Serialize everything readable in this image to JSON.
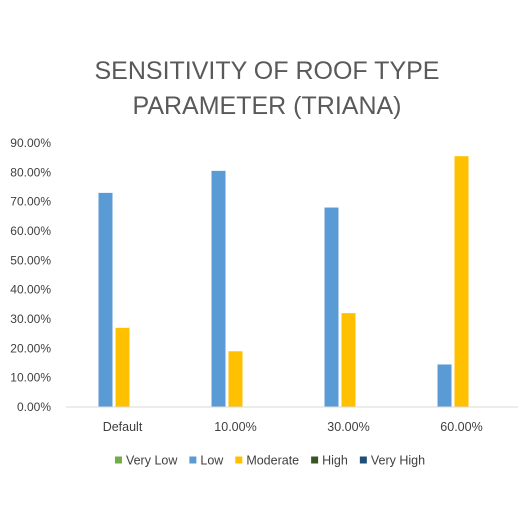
{
  "chart_data": {
    "type": "bar",
    "title_lines": [
      "SENSITIVITY OF ROOF TYPE",
      "PARAMETER (TRIANA)"
    ],
    "categories": [
      "Default",
      "10.00%",
      "30.00%",
      "60.00%"
    ],
    "y_ticks": [
      "0.00%",
      "10.00%",
      "20.00%",
      "30.00%",
      "40.00%",
      "50.00%",
      "60.00%",
      "70.00%",
      "80.00%",
      "90.00%"
    ],
    "ylim": [
      0,
      90
    ],
    "grid": false,
    "legend_position": "bottom",
    "series": [
      {
        "name": "Very Low",
        "color": "#70AD47",
        "values": [
          0,
          0,
          0,
          0
        ]
      },
      {
        "name": "Low",
        "color": "#5B9BD5",
        "values": [
          73.0,
          80.5,
          68.0,
          14.5
        ]
      },
      {
        "name": "Moderate",
        "color": "#FFC000",
        "values": [
          27.0,
          19.0,
          32.0,
          85.5
        ]
      },
      {
        "name": "High",
        "color": "#375623",
        "values": [
          0,
          0,
          0,
          0
        ]
      },
      {
        "name": "Very High",
        "color": "#1F4E79",
        "values": [
          0,
          0,
          0,
          0
        ]
      }
    ]
  }
}
